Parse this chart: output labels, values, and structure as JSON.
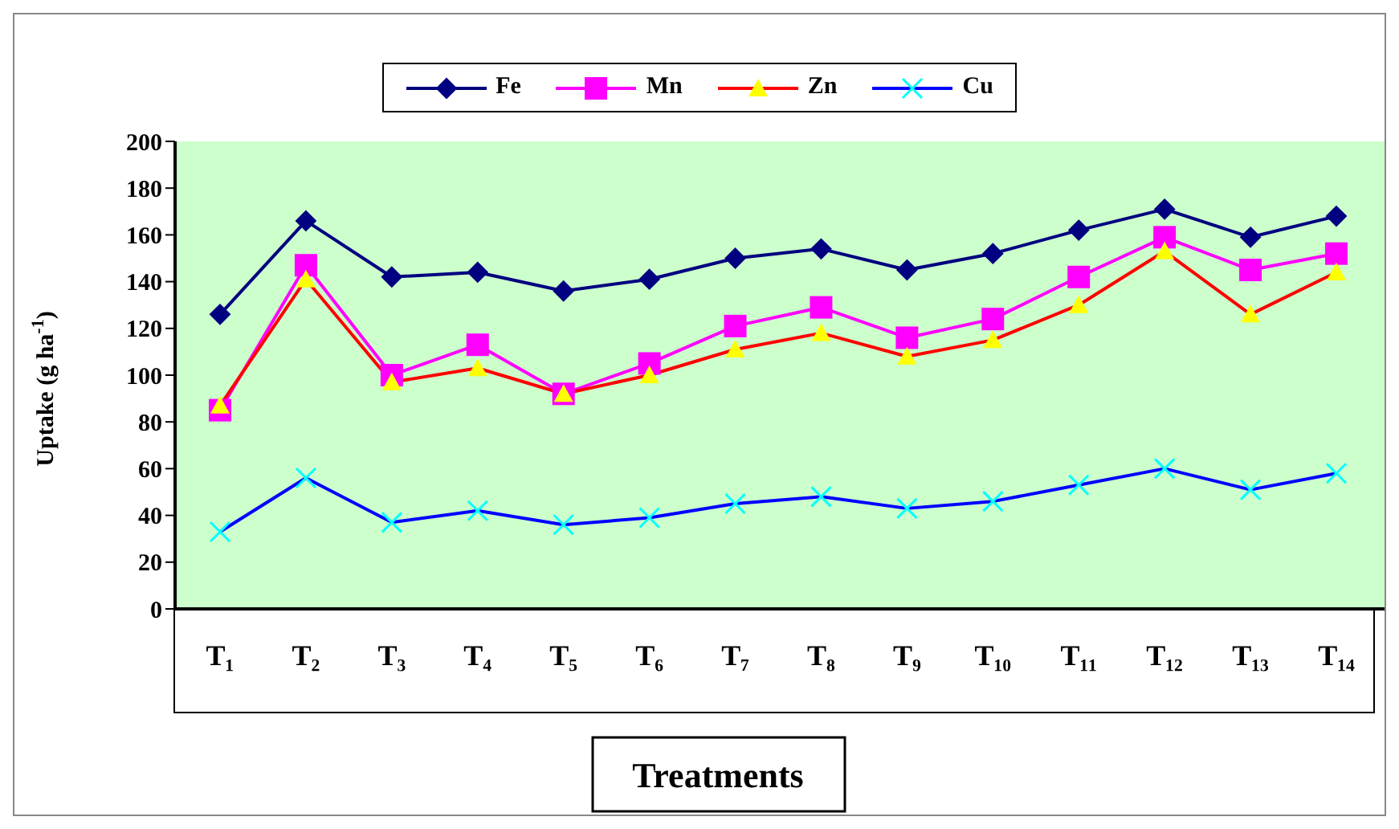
{
  "chart_data": {
    "type": "line",
    "xlabel": "Treatments",
    "ylabel": "Uptake (g ha$^{-1}$)",
    "categories": [
      "T₁",
      "T₂",
      "T₃",
      "T₄",
      "T₅",
      "T₆",
      "T₇",
      "T₈",
      "T₉",
      "T₁₀",
      "T₁₁",
      "T₁₂",
      "T₁₃",
      "T₁₄"
    ],
    "series": [
      {
        "name": "Fe",
        "color": "#000080",
        "marker": "diamond",
        "values": [
          126,
          166,
          142,
          144,
          136,
          141,
          150,
          154,
          145,
          152,
          162,
          171,
          159,
          168
        ]
      },
      {
        "name": "Mn",
        "color": "#ff00ff",
        "marker": "square",
        "values": [
          85,
          147,
          100,
          113,
          92,
          105,
          121,
          129,
          116,
          124,
          142,
          159,
          145,
          152
        ]
      },
      {
        "name": "Zn",
        "color": "#ff0000",
        "marker": "triangle",
        "colors": [
          "#ffff00",
          "#ffff00",
          "#ffff00",
          "#ffff00",
          "#ffff00",
          "#ffff00",
          "#ffff00",
          "#ffff00",
          "#ffff00",
          "#ffff00",
          "#ffff00",
          "#ffff00",
          "#ffff00",
          "#ffff00"
        ],
        "values": [
          87,
          141,
          97,
          103,
          92,
          100,
          111,
          118,
          108,
          115,
          130,
          153,
          126,
          144
        ]
      },
      {
        "name": "Cu",
        "color": "#0000ff",
        "marker": "cross",
        "colors": [
          "#00ffff",
          "#00ffff",
          "#00ffff",
          "#00ffff",
          "#00ffff",
          "#00ffff",
          "#00ffff",
          "#00ffff",
          "#00ffff",
          "#00ffff",
          "#00ffff",
          "#00ffff",
          "#00ffff",
          "#00ffff"
        ],
        "values": [
          33,
          56,
          37,
          42,
          36,
          39,
          45,
          48,
          43,
          46,
          53,
          60,
          51,
          58
        ]
      }
    ],
    "ylim": [
      0,
      200
    ],
    "yticks": [
      0,
      20,
      40,
      60,
      80,
      100,
      120,
      140,
      160,
      180,
      200
    ],
    "grid": false,
    "legend": "top"
  }
}
